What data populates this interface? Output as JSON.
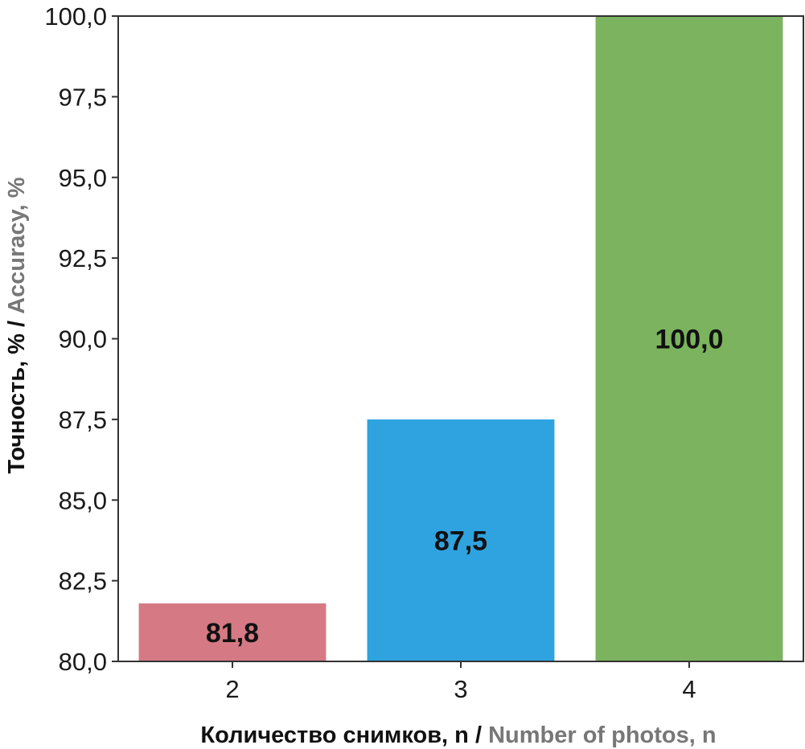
{
  "chart_data": {
    "type": "bar",
    "categories": [
      "2",
      "3",
      "4"
    ],
    "values": [
      81.8,
      87.5,
      100.0
    ],
    "value_labels": [
      "81,8",
      "87,5",
      "100,0"
    ],
    "bar_colors": [
      "#d57a84",
      "#2ea3e0",
      "#7bb35e"
    ],
    "ylim": [
      80.0,
      100.0
    ],
    "yticks": [
      80.0,
      82.5,
      85.0,
      87.5,
      90.0,
      92.5,
      95.0,
      97.5,
      100.0
    ],
    "ytick_labels": [
      "80,0",
      "82,5",
      "85,0",
      "87,5",
      "90,0",
      "92,5",
      "95,0",
      "97,5",
      "100,0"
    ],
    "grid": false,
    "xlabel_primary": "Количество снимков, n / ",
    "xlabel_secondary": "Number of photos, n",
    "ylabel_primary": "Точность, % / ",
    "ylabel_secondary": "Accuracy, %",
    "secondary_label_color": "#777777"
  }
}
